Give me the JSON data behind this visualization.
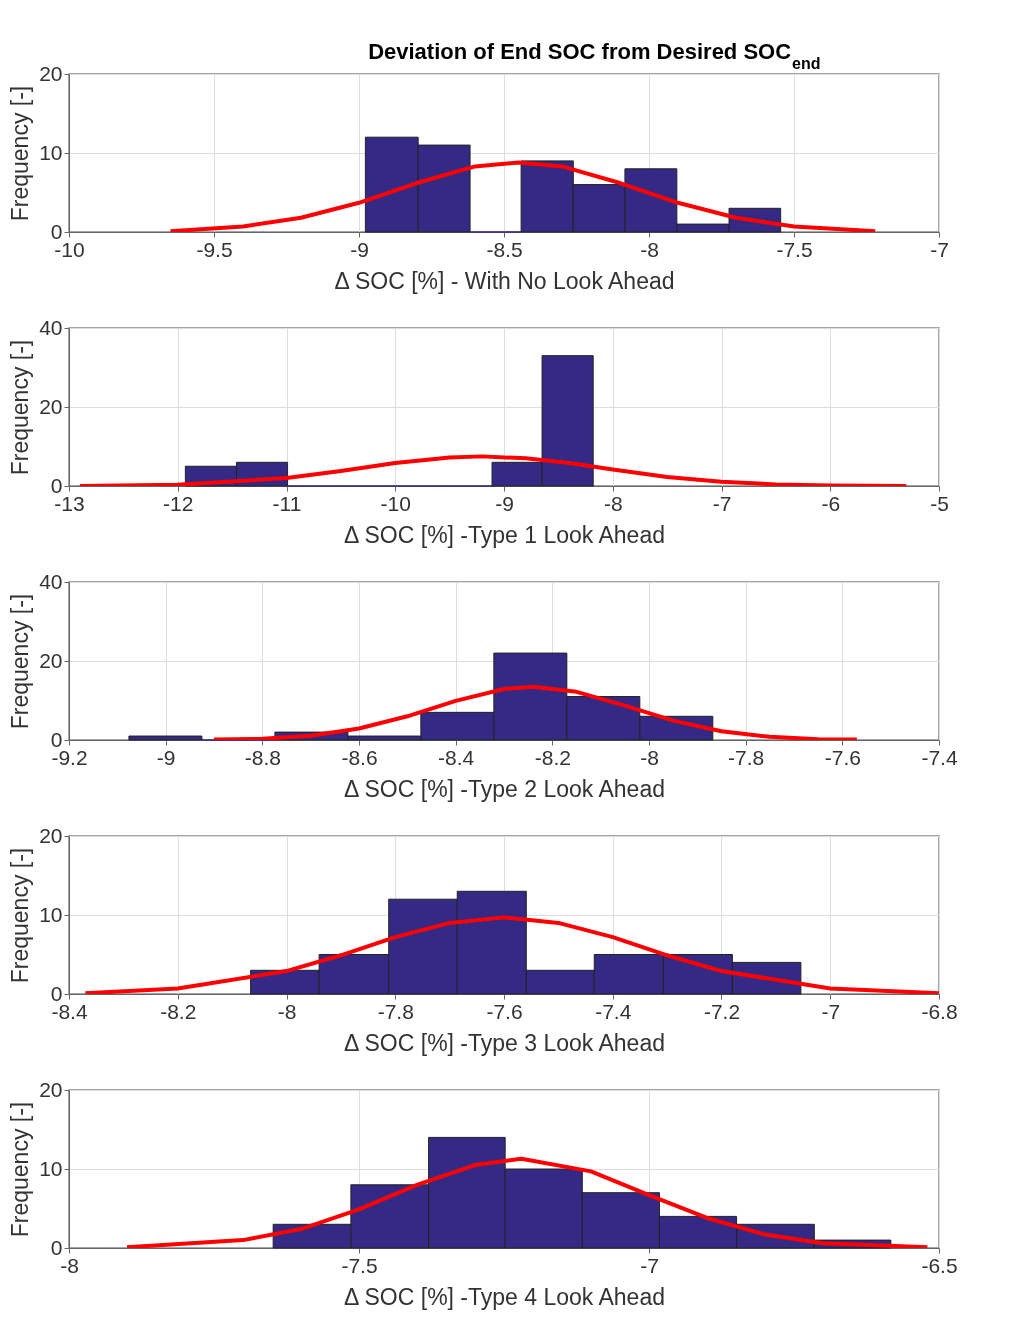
{
  "chart_data": [
    {
      "type": "histogram",
      "title": "Deviation of End SOC from Desired SOC$_{end}$",
      "xlabel": "Δ SOC [%] - With No Look Ahead",
      "ylabel": "Frequency [-]",
      "color": "#342a85",
      "bins": [
        -8.978,
        -8.796,
        -8.617,
        -8.441,
        -8.261,
        -8.083,
        -7.904,
        -7.724,
        -7.546
      ],
      "values": [
        12,
        11,
        0,
        9,
        6,
        8,
        1,
        3
      ],
      "series": [
        {
          "type": "line",
          "color": "#ff0000",
          "x": [
            -9.65,
            -9.4,
            -9.2,
            -9.0,
            -8.8,
            -8.6,
            -8.45,
            -8.3,
            -8.1,
            -7.9,
            -7.7,
            -7.5,
            -7.22
          ],
          "values": [
            0.1,
            0.7,
            1.8,
            3.7,
            6.2,
            8.3,
            8.8,
            8.3,
            6.2,
            3.7,
            1.8,
            0.7,
            0.1
          ]
        }
      ],
      "xlim": [
        -10,
        -7
      ],
      "xticks": [
        -10,
        -9.5,
        -9,
        -8.5,
        -8,
        -7.5,
        -7
      ],
      "ylim": [
        0,
        20
      ],
      "yticks": [
        0,
        10,
        20
      ],
      "grid": true
    },
    {
      "type": "histogram",
      "xlabel": "Δ SOC [%] -Type 1 Look Ahead",
      "ylabel": "Frequency [-]",
      "color": "#342a85",
      "bins": [
        -11.93,
        -11.46,
        -10.99,
        -10.52,
        -10.05,
        -9.58,
        -9.11,
        -8.65,
        -8.18
      ],
      "values": [
        5,
        6,
        0,
        0,
        0,
        0,
        6,
        33
      ],
      "series": [
        {
          "type": "line",
          "color": "#ff0000",
          "x": [
            -12.9,
            -12,
            -11,
            -10.5,
            -10,
            -9.5,
            -9.2,
            -8.8,
            -8.4,
            -8,
            -7.5,
            -7,
            -6.5,
            -6,
            -5.3
          ],
          "values": [
            0,
            0.3,
            2.0,
            3.8,
            5.8,
            7.2,
            7.5,
            7.0,
            5.8,
            4.2,
            2.3,
            1.1,
            0.4,
            0.1,
            0
          ]
        }
      ],
      "xlim": [
        -13,
        -5
      ],
      "xticks": [
        -13,
        -12,
        -11,
        -10,
        -9,
        -8,
        -7,
        -6,
        -5
      ],
      "ylim": [
        0,
        40
      ],
      "yticks": [
        0,
        20,
        40
      ],
      "grid": true
    },
    {
      "type": "histogram",
      "xlabel": "Δ SOC [%] -Type 2 Look Ahead",
      "ylabel": "Frequency [-]",
      "color": "#342a85",
      "bins": [
        -9.076,
        -8.925,
        -8.774,
        -8.623,
        -8.472,
        -8.321,
        -8.17,
        -8.019,
        -7.868
      ],
      "values": [
        1,
        0,
        2,
        1,
        7,
        22,
        11,
        6
      ],
      "series": [
        {
          "type": "line",
          "color": "#ff0000",
          "x": [
            -8.9,
            -8.8,
            -8.7,
            -8.6,
            -8.5,
            -8.4,
            -8.3,
            -8.24,
            -8.15,
            -8.05,
            -7.95,
            -7.85,
            -7.75,
            -7.65,
            -7.57
          ],
          "values": [
            0.1,
            0.3,
            1.1,
            2.9,
            6.0,
            9.9,
            12.9,
            13.5,
            12.2,
            8.7,
            4.9,
            2.2,
            0.8,
            0.2,
            0.1
          ]
        }
      ],
      "xlim": [
        -9.2,
        -7.4
      ],
      "xticks": [
        -9.2,
        -9,
        -8.8,
        -8.6,
        -8.4,
        -8.2,
        -8,
        -7.8,
        -7.6,
        -7.4
      ],
      "ylim": [
        0,
        40
      ],
      "yticks": [
        0,
        20,
        40
      ],
      "grid": true
    },
    {
      "type": "histogram",
      "xlabel": "Δ SOC [%] -Type 3 Look Ahead",
      "ylabel": "Frequency [-]",
      "color": "#342a85",
      "bins": [
        -8.066,
        -7.94,
        -7.812,
        -7.686,
        -7.559,
        -7.434,
        -7.307,
        -7.18,
        -7.054
      ],
      "values": [
        3,
        5,
        12,
        13,
        3,
        5,
        5,
        4
      ],
      "series": [
        {
          "type": "line",
          "color": "#ff0000",
          "x": [
            -8.37,
            -8.2,
            -8.0,
            -7.9,
            -7.8,
            -7.7,
            -7.6,
            -7.5,
            -7.4,
            -7.3,
            -7.2,
            -7.0,
            -6.8
          ],
          "values": [
            0.1,
            0.7,
            2.9,
            4.9,
            7.2,
            9.0,
            9.7,
            9.0,
            7.2,
            4.9,
            2.9,
            0.7,
            0.1
          ]
        }
      ],
      "xlim": [
        -8.4,
        -6.8
      ],
      "xticks": [
        -8.4,
        -8.2,
        -8,
        -7.8,
        -7.6,
        -7.4,
        -7.2,
        -7,
        -6.8
      ],
      "ylim": [
        0,
        20
      ],
      "yticks": [
        0,
        10,
        20
      ],
      "grid": true
    },
    {
      "type": "histogram",
      "xlabel": "Δ SOC [%] -Type 4 Look Ahead",
      "ylabel": "Frequency [-]",
      "color": "#342a85",
      "bins": [
        -7.648,
        -7.514,
        -7.38,
        -7.248,
        -7.115,
        -6.982,
        -6.849,
        -6.715,
        -6.583
      ],
      "values": [
        3,
        8,
        14,
        10,
        7,
        4,
        3,
        1
      ],
      "series": [
        {
          "type": "line",
          "color": "#ff0000",
          "x": [
            -7.9,
            -7.7,
            -7.6,
            -7.5,
            -7.4,
            -7.3,
            -7.22,
            -7.1,
            -7.0,
            -6.9,
            -6.8,
            -6.7,
            -6.52
          ],
          "values": [
            0.1,
            1.0,
            2.4,
            4.9,
            8.0,
            10.5,
            11.3,
            9.7,
            6.7,
            3.8,
            1.7,
            0.6,
            0.1
          ]
        }
      ],
      "xlim": [
        -8,
        -6.5
      ],
      "xticks": [
        -8,
        -7.5,
        -7,
        -6.5
      ],
      "ylim": [
        0,
        20
      ],
      "yticks": [
        0,
        10,
        20
      ],
      "grid": true
    }
  ]
}
